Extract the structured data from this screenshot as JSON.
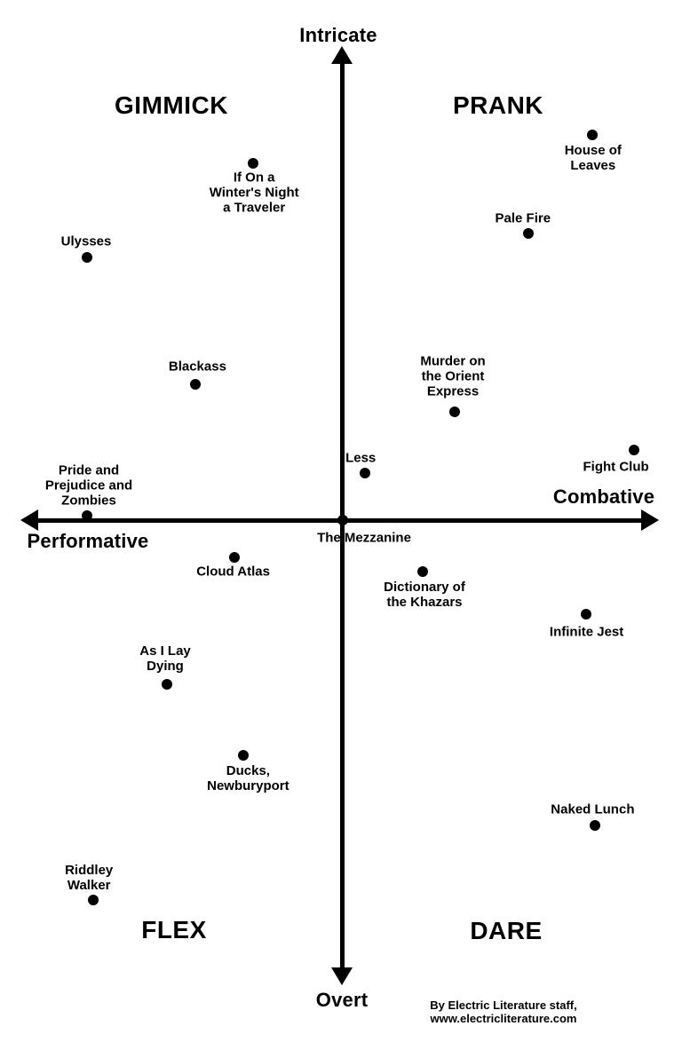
{
  "colors": {
    "background": "#ffffff",
    "ink": "#000000"
  },
  "chart_data": {
    "type": "scatter",
    "title": "",
    "description": "Quadrant chart plotting novels along Intricate/Overt and Performative/Combative axes",
    "axes": {
      "y_positive_label": "Intricate",
      "y_negative_label": "Overt",
      "x_negative_label": "Performative",
      "x_positive_label": "Combative",
      "x_range": [
        -10,
        10
      ],
      "y_range": [
        -10,
        10
      ],
      "grid": false,
      "tick_labels": "none"
    },
    "quadrants": {
      "top_left": "GIMMICK",
      "top_right": "PRANK",
      "bottom_left": "FLEX",
      "bottom_right": "DARE"
    },
    "points": [
      {
        "title": "If On a Winter's Night a Traveler",
        "label": "If On a\nWinter's Night\na Traveler",
        "x": -2.8,
        "y": 7.6,
        "label_side": "below",
        "label_offset": [
          1,
          33
        ]
      },
      {
        "title": "House of Leaves",
        "label": "House of\nLeaves",
        "x": 7.8,
        "y": 8.2,
        "label_side": "below",
        "label_offset": [
          1,
          26
        ]
      },
      {
        "title": "Pale Fire",
        "label": "Pale Fire",
        "x": 5.8,
        "y": 6.1,
        "label_side": "above",
        "label_offset": [
          -6,
          -17
        ]
      },
      {
        "title": "Ulysses",
        "label": "Ulysses",
        "x": -8.0,
        "y": 5.6,
        "label_side": "above",
        "label_offset": [
          -1,
          -18
        ]
      },
      {
        "title": "Blackass",
        "label": "Blackass",
        "x": -4.6,
        "y": 2.9,
        "label_side": "above",
        "label_offset": [
          2,
          -20
        ]
      },
      {
        "title": "Murder on the Orient Express",
        "label": "Murder on\nthe Orient\nExpress",
        "x": 3.5,
        "y": 2.3,
        "label_side": "above",
        "label_offset": [
          -2,
          -40
        ]
      },
      {
        "title": "Less",
        "label": "Less",
        "x": 0.7,
        "y": 1.0,
        "label_side": "above",
        "label_offset": [
          -5,
          -17
        ]
      },
      {
        "title": "Fight Club",
        "label": "Fight Club",
        "x": 9.1,
        "y": 1.5,
        "label_side": "below-left",
        "label_offset": [
          -20,
          19
        ]
      },
      {
        "title": "Pride and Prejudice and Zombies",
        "label": "Pride and\nPrejudice and\nZombies",
        "x": -8.0,
        "y": 0.1,
        "label_side": "above",
        "label_offset": [
          2,
          -34
        ]
      },
      {
        "title": "The Mezzanine",
        "label": "The Mezzanine",
        "x": 0.0,
        "y": 0.0,
        "label_side": "below-right",
        "label_offset": [
          24,
          20
        ]
      },
      {
        "title": "Cloud Atlas",
        "label": "Cloud Atlas",
        "x": -3.4,
        "y": -0.8,
        "label_side": "below",
        "label_offset": [
          -1,
          16
        ]
      },
      {
        "title": "Dictionary of the Khazars",
        "label": "Dictionary of\nthe Khazars",
        "x": 2.5,
        "y": -1.1,
        "label_side": "below",
        "label_offset": [
          2,
          26
        ]
      },
      {
        "title": "Infinite Jest",
        "label": "Infinite Jest",
        "x": 7.6,
        "y": -2.0,
        "label_side": "below",
        "label_offset": [
          1,
          20
        ]
      },
      {
        "title": "As I Lay Dying",
        "label": "As I Lay\nDying",
        "x": -5.5,
        "y": -3.5,
        "label_side": "above",
        "label_offset": [
          -2,
          -29
        ]
      },
      {
        "title": "Ducks, Newburyport",
        "label": "Ducks,\nNewburyport",
        "x": -3.1,
        "y": -5.0,
        "label_side": "below",
        "label_offset": [
          5,
          26
        ]
      },
      {
        "title": "Naked Lunch",
        "label": "Naked Lunch",
        "x": 7.9,
        "y": -6.5,
        "label_side": "above",
        "label_offset": [
          -3,
          -18
        ]
      },
      {
        "title": "Riddley Walker",
        "label": "Riddley\nWalker",
        "x": -7.8,
        "y": -8.1,
        "label_side": "above",
        "label_offset": [
          -5,
          -25
        ]
      }
    ]
  },
  "attribution": {
    "text": "By Electric Literature staff,\nwww.electricliterature.com"
  }
}
